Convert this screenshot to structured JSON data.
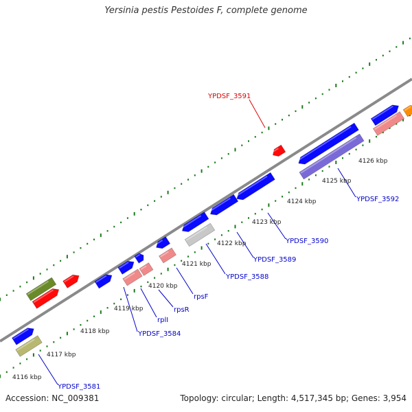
{
  "title": "Yersinia pestis Pestoides F, complete genome",
  "accession": "Accession: NC_009381",
  "topology": "Topology: circular; Length: 4,517,345 bp; Genes: 3,954",
  "colors": {
    "backbone": "#8a8a8a",
    "tick": "#1b7a1b",
    "blue_gene": "#0a0aff",
    "red_gene": "#ff0a0a",
    "pink_gene": "#f08a8a",
    "purple_gene": "#7a6ad8",
    "olive_gene": "#6a8a2a",
    "khaki_gene": "#b8b870",
    "gray_gene": "#c8c8c8",
    "orange_gene": "#ff8c00",
    "blue_label": "#0000cc",
    "red_label": "#dd0000"
  },
  "kbp_labels": [
    "4116 kbp",
    "4117 kbp",
    "4118 kbp",
    "4119 kbp",
    "4120 kbp",
    "4121 kbp",
    "4122 kbp",
    "4123 kbp",
    "4124 kbp",
    "4125 kbp",
    "4126 kbp"
  ],
  "gene_labels": [
    "YPDSF_3581",
    "YPDSF_3584",
    "rplI",
    "rpsR",
    "rpsF",
    "YPDSF_3588",
    "YPDSF_3589",
    "YPDSF_3590",
    "YPDSF_3592",
    "YPDSF_3591"
  ]
}
